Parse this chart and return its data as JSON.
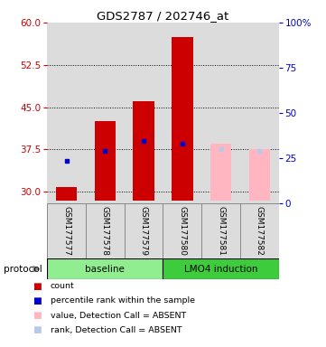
{
  "title": "GDS2787 / 202746_at",
  "samples": [
    "GSM177577",
    "GSM177578",
    "GSM177579",
    "GSM177580",
    "GSM177581",
    "GSM177582"
  ],
  "ylim_left": [
    28,
    60
  ],
  "ylim_right": [
    0,
    100
  ],
  "yticks_left": [
    30,
    37.5,
    45,
    52.5,
    60
  ],
  "yticks_right": [
    0,
    25,
    50,
    75,
    100
  ],
  "count_values": [
    30.8,
    42.5,
    46.0,
    57.5,
    null,
    null
  ],
  "blue_dot_values": [
    35.5,
    37.2,
    39.0,
    38.5,
    null,
    null
  ],
  "absent_value_bars": [
    null,
    null,
    null,
    null,
    38.5,
    37.5
  ],
  "absent_rank_dot_values": [
    null,
    null,
    null,
    null,
    37.5,
    37.2
  ],
  "bar_bottom": 28.5,
  "bar_width": 0.55,
  "count_color": "#CC0000",
  "rank_color": "#0000CC",
  "absent_value_color": "#FFB6C1",
  "absent_rank_color": "#B8C8E8",
  "bg_chart": "#DCDCDC",
  "bg_fig": "#FFFFFF",
  "group_baseline_color": "#90EE90",
  "group_lmo4_color": "#3CCC3C",
  "legend_items": [
    {
      "label": "count",
      "color": "#CC0000"
    },
    {
      "label": "percentile rank within the sample",
      "color": "#0000CC"
    },
    {
      "label": "value, Detection Call = ABSENT",
      "color": "#FFB6C1"
    },
    {
      "label": "rank, Detection Call = ABSENT",
      "color": "#B8C8E8"
    }
  ]
}
